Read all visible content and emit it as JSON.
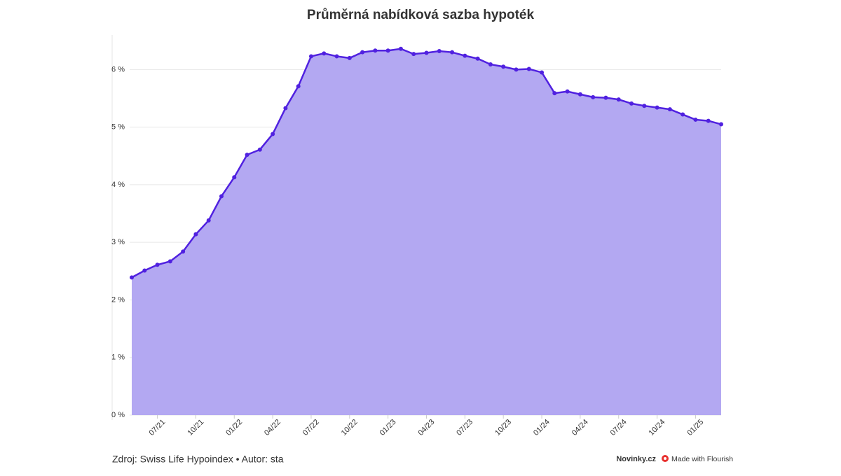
{
  "chart_data": {
    "type": "area",
    "title": "Průměrná nabídková sazba hypoték",
    "categories": [
      null,
      null,
      "07/21",
      null,
      null,
      "10/21",
      null,
      null,
      "01/22",
      null,
      null,
      "04/22",
      null,
      null,
      "07/22",
      null,
      null,
      "10/22",
      null,
      null,
      "01/23",
      null,
      null,
      "04/23",
      null,
      null,
      "07/23",
      null,
      null,
      "10/23",
      null,
      null,
      "01/24",
      null,
      null,
      "04/24",
      null,
      null,
      "07/24",
      null,
      null,
      "10/24",
      null,
      null,
      "01/25",
      null,
      null
    ],
    "series": [
      {
        "color": "#5021e0",
        "fill": "#b3a8f2",
        "values": [
          2.39,
          2.51,
          2.61,
          2.67,
          2.84,
          3.14,
          3.38,
          3.8,
          4.13,
          4.52,
          4.61,
          4.88,
          5.33,
          5.71,
          6.23,
          6.28,
          6.23,
          6.2,
          6.3,
          6.33,
          6.33,
          6.36,
          6.27,
          6.29,
          6.32,
          6.3,
          6.24,
          6.19,
          6.09,
          6.05,
          6.0,
          6.01,
          5.95,
          5.59,
          5.62,
          5.57,
          5.52,
          5.51,
          5.48,
          5.41,
          5.37,
          5.34,
          5.31,
          5.22,
          5.13,
          5.11,
          5.05
        ]
      }
    ],
    "ylim": [
      0,
      6.6
    ],
    "yticks": [
      {
        "value": 0,
        "label": "0 %"
      },
      {
        "value": 1,
        "label": "1 %"
      },
      {
        "value": 2,
        "label": "2 %"
      },
      {
        "value": 3,
        "label": "3 %"
      },
      {
        "value": 4,
        "label": "4 %"
      },
      {
        "value": 5,
        "label": "5 %"
      },
      {
        "value": 6,
        "label": "6 %"
      }
    ],
    "grid": true,
    "source": "Zdroj: Swiss Life Hypoindex • Autor: sta",
    "publisher": "Novinky.cz",
    "credit": "Made with Flourish"
  }
}
